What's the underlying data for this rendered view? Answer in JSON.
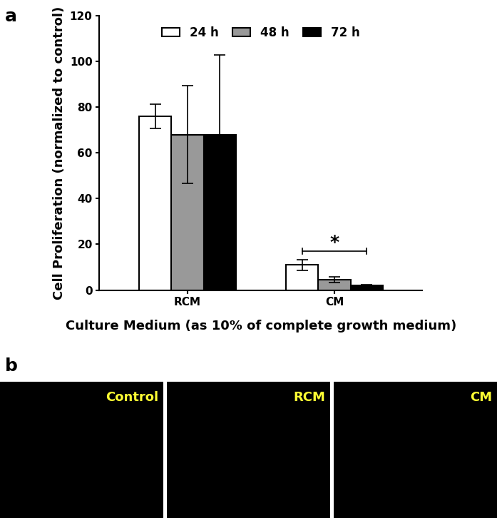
{
  "chart_data": {
    "type": "bar",
    "categories": [
      "RCM",
      "CM"
    ],
    "series": [
      {
        "name": "24 h",
        "color": "#ffffff",
        "values": [
          76,
          11
        ],
        "errors": [
          5.3,
          2.3
        ]
      },
      {
        "name": "48 h",
        "color": "#999999",
        "values": [
          68,
          4.5
        ],
        "errors": [
          21.3,
          1.2
        ]
      },
      {
        "name": "72 h",
        "color": "#000000",
        "values": [
          68,
          2
        ],
        "errors": [
          34.7,
          0.4
        ]
      }
    ],
    "y_label": "Cell Proliferation (normalized to control)",
    "x_label": "Culture Medium (as 10% of complete growth medium)",
    "ylim": [
      0,
      120
    ],
    "yticks": [
      0,
      20,
      40,
      60,
      80,
      100,
      120
    ],
    "legend": "upper center",
    "annotations": [
      {
        "text": "*",
        "category": "CM",
        "y": 17
      }
    ],
    "panel_label": "a"
  },
  "image_panels": {
    "panel_label": "b",
    "labels": [
      "Control",
      "RCM",
      "CM"
    ]
  }
}
